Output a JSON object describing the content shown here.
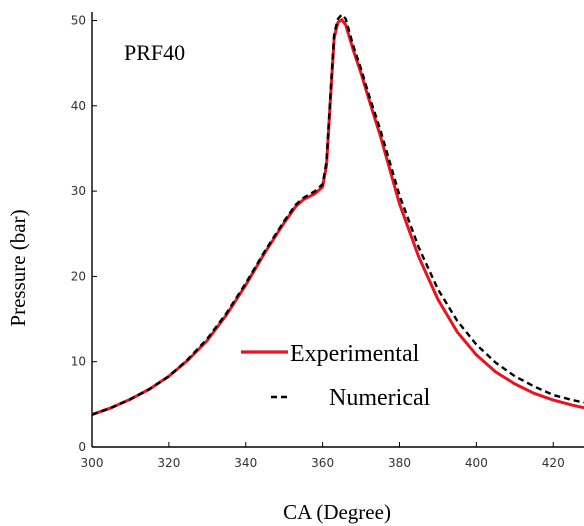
{
  "chart_data": {
    "type": "line",
    "title": "",
    "annotation": "PRF40",
    "xlabel": "CA (Degree)",
    "ylabel": "Pressure (bar)",
    "xlim": [
      300,
      428
    ],
    "ylim": [
      0,
      51
    ],
    "xticks": [
      300,
      320,
      340,
      360,
      380,
      400,
      420
    ],
    "yticks": [
      0,
      10,
      20,
      30,
      40,
      50
    ],
    "grid": false,
    "legend_position": "bottom-right",
    "series": [
      {
        "name": "Experimental",
        "color": "#e8141e",
        "style": "solid",
        "x": [
          300,
          305,
          310,
          315,
          320,
          325,
          330,
          335,
          340,
          345,
          350,
          353,
          355,
          358,
          360,
          361,
          362,
          363,
          364,
          365,
          366,
          367,
          368,
          370,
          372,
          375,
          380,
          385,
          390,
          395,
          400,
          405,
          410,
          415,
          420,
          425,
          428
        ],
        "y": [
          3.8,
          4.6,
          5.6,
          6.8,
          8.3,
          10.2,
          12.5,
          15.5,
          19.0,
          22.8,
          26.3,
          28.2,
          29.0,
          29.7,
          30.5,
          33.0,
          40.5,
          48.0,
          49.8,
          50.1,
          49.5,
          48.0,
          46.5,
          43.8,
          40.8,
          36.5,
          28.5,
          22.3,
          17.3,
          13.5,
          10.8,
          8.8,
          7.4,
          6.3,
          5.5,
          4.9,
          4.6
        ]
      },
      {
        "name": "Numerical",
        "color": "#000000",
        "style": "dashed",
        "x": [
          300,
          305,
          310,
          315,
          320,
          325,
          330,
          335,
          340,
          345,
          350,
          353,
          355,
          358,
          360,
          361,
          362,
          363,
          364,
          365,
          366,
          367,
          368,
          370,
          372,
          375,
          380,
          385,
          390,
          395,
          400,
          405,
          410,
          415,
          420,
          425,
          428
        ],
        "y": [
          3.8,
          4.6,
          5.6,
          6.8,
          8.3,
          10.3,
          12.7,
          15.7,
          19.2,
          23.0,
          26.5,
          28.4,
          29.2,
          30.0,
          30.8,
          33.5,
          41.0,
          48.5,
          50.2,
          50.7,
          50.2,
          48.6,
          47.0,
          44.3,
          41.3,
          37.2,
          29.5,
          23.4,
          18.5,
          14.8,
          12.0,
          9.9,
          8.3,
          7.1,
          6.1,
          5.5,
          5.2
        ]
      }
    ]
  }
}
